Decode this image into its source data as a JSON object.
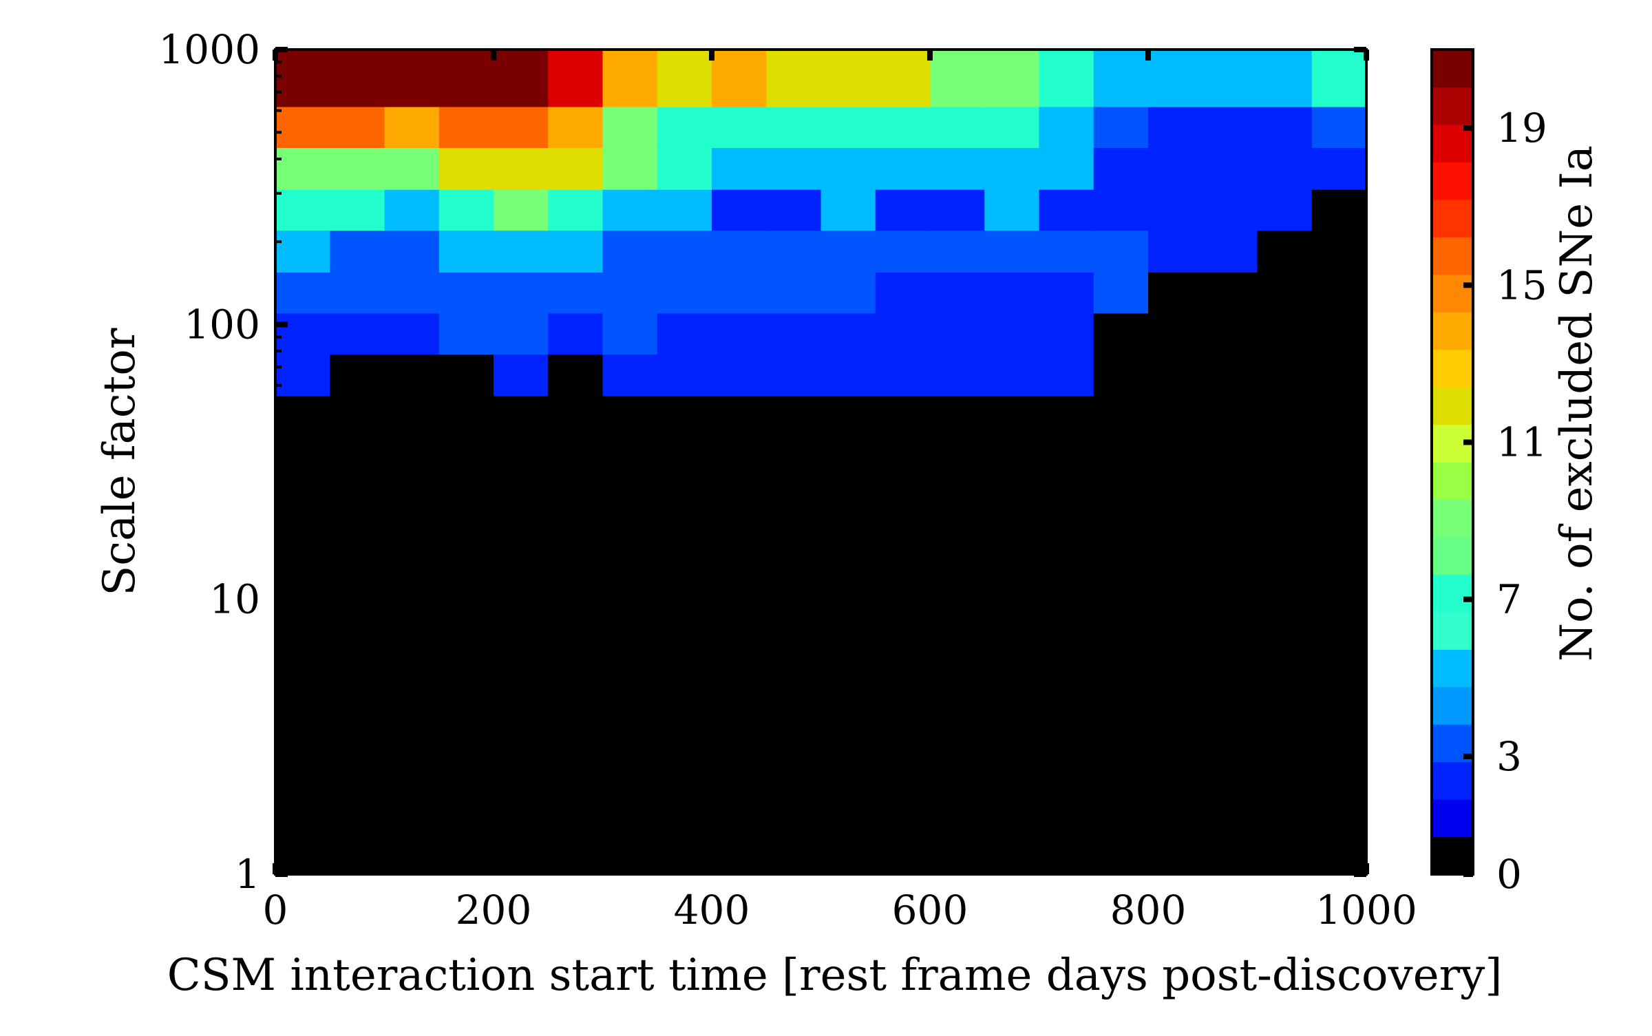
{
  "chart_data": {
    "type": "heatmap",
    "title": "",
    "xlabel": "CSM interaction start time [rest frame days post-discovery]",
    "ylabel": "Scale factor",
    "colorbar_label": "No. of excluded SNe Ia",
    "xlim": [
      0,
      1000
    ],
    "ylim": [
      1,
      1000
    ],
    "y_scale": "log",
    "x_ticks": [
      "0",
      "200",
      "400",
      "600",
      "800",
      "1000"
    ],
    "y_ticks": [
      "1",
      "10",
      "100",
      "1000"
    ],
    "colorbar_ticks": [
      "0",
      "3",
      "7",
      "11",
      "15",
      "19"
    ],
    "colorbar_range": [
      0,
      21
    ],
    "colormap": [
      "#000000",
      "#0000ee",
      "#0022ff",
      "#0055ff",
      "#0099ff",
      "#00bbff",
      "#33ffcc",
      "#22ffcc",
      "#66ff88",
      "#77ff77",
      "#99ff44",
      "#ccff33",
      "#dddd00",
      "#ffcc00",
      "#ffaa00",
      "#ff8800",
      "#ff6600",
      "#ff3300",
      "#ff1100",
      "#dd0000",
      "#aa0000",
      "#7a0000"
    ],
    "x_bin_edges": [
      0,
      50,
      100,
      150,
      200,
      250,
      300,
      350,
      400,
      450,
      500,
      550,
      600,
      650,
      700,
      750,
      800,
      850,
      900,
      950,
      1000
    ],
    "y_bin_edges": [
      1,
      55,
      78,
      110,
      155,
      220,
      310,
      440,
      620,
      1000
    ],
    "z": [
      [
        0,
        0,
        0,
        0,
        0,
        0,
        0,
        0,
        0,
        0,
        0,
        0,
        0,
        0,
        0,
        0,
        0,
        0,
        0,
        0
      ],
      [
        2,
        0,
        0,
        0,
        2,
        0,
        2,
        2,
        2,
        2,
        2,
        2,
        2,
        2,
        2,
        0,
        0,
        0,
        0,
        0
      ],
      [
        2,
        2,
        2,
        3,
        3,
        2,
        3,
        2,
        2,
        2,
        2,
        2,
        2,
        2,
        2,
        0,
        0,
        0,
        0,
        0
      ],
      [
        3,
        3,
        3,
        3,
        3,
        3,
        3,
        3,
        3,
        3,
        3,
        2,
        2,
        2,
        2,
        3,
        0,
        0,
        0,
        0
      ],
      [
        5,
        3,
        3,
        5,
        5,
        5,
        3,
        3,
        3,
        3,
        3,
        3,
        3,
        3,
        3,
        3,
        2,
        2,
        0,
        0
      ],
      [
        7,
        7,
        5,
        7,
        9,
        7,
        5,
        5,
        2,
        2,
        5,
        2,
        2,
        5,
        2,
        2,
        2,
        2,
        2,
        0
      ],
      [
        9,
        9,
        9,
        12,
        12,
        12,
        9,
        7,
        5,
        5,
        5,
        5,
        5,
        5,
        5,
        2,
        2,
        2,
        2,
        2
      ],
      [
        16,
        16,
        14,
        16,
        16,
        14,
        9,
        7,
        7,
        7,
        7,
        7,
        7,
        7,
        5,
        3,
        2,
        2,
        2,
        3
      ],
      [
        21,
        21,
        21,
        21,
        21,
        19,
        14,
        12,
        14,
        12,
        12,
        12,
        9,
        9,
        7,
        5,
        5,
        5,
        5,
        7
      ]
    ]
  }
}
